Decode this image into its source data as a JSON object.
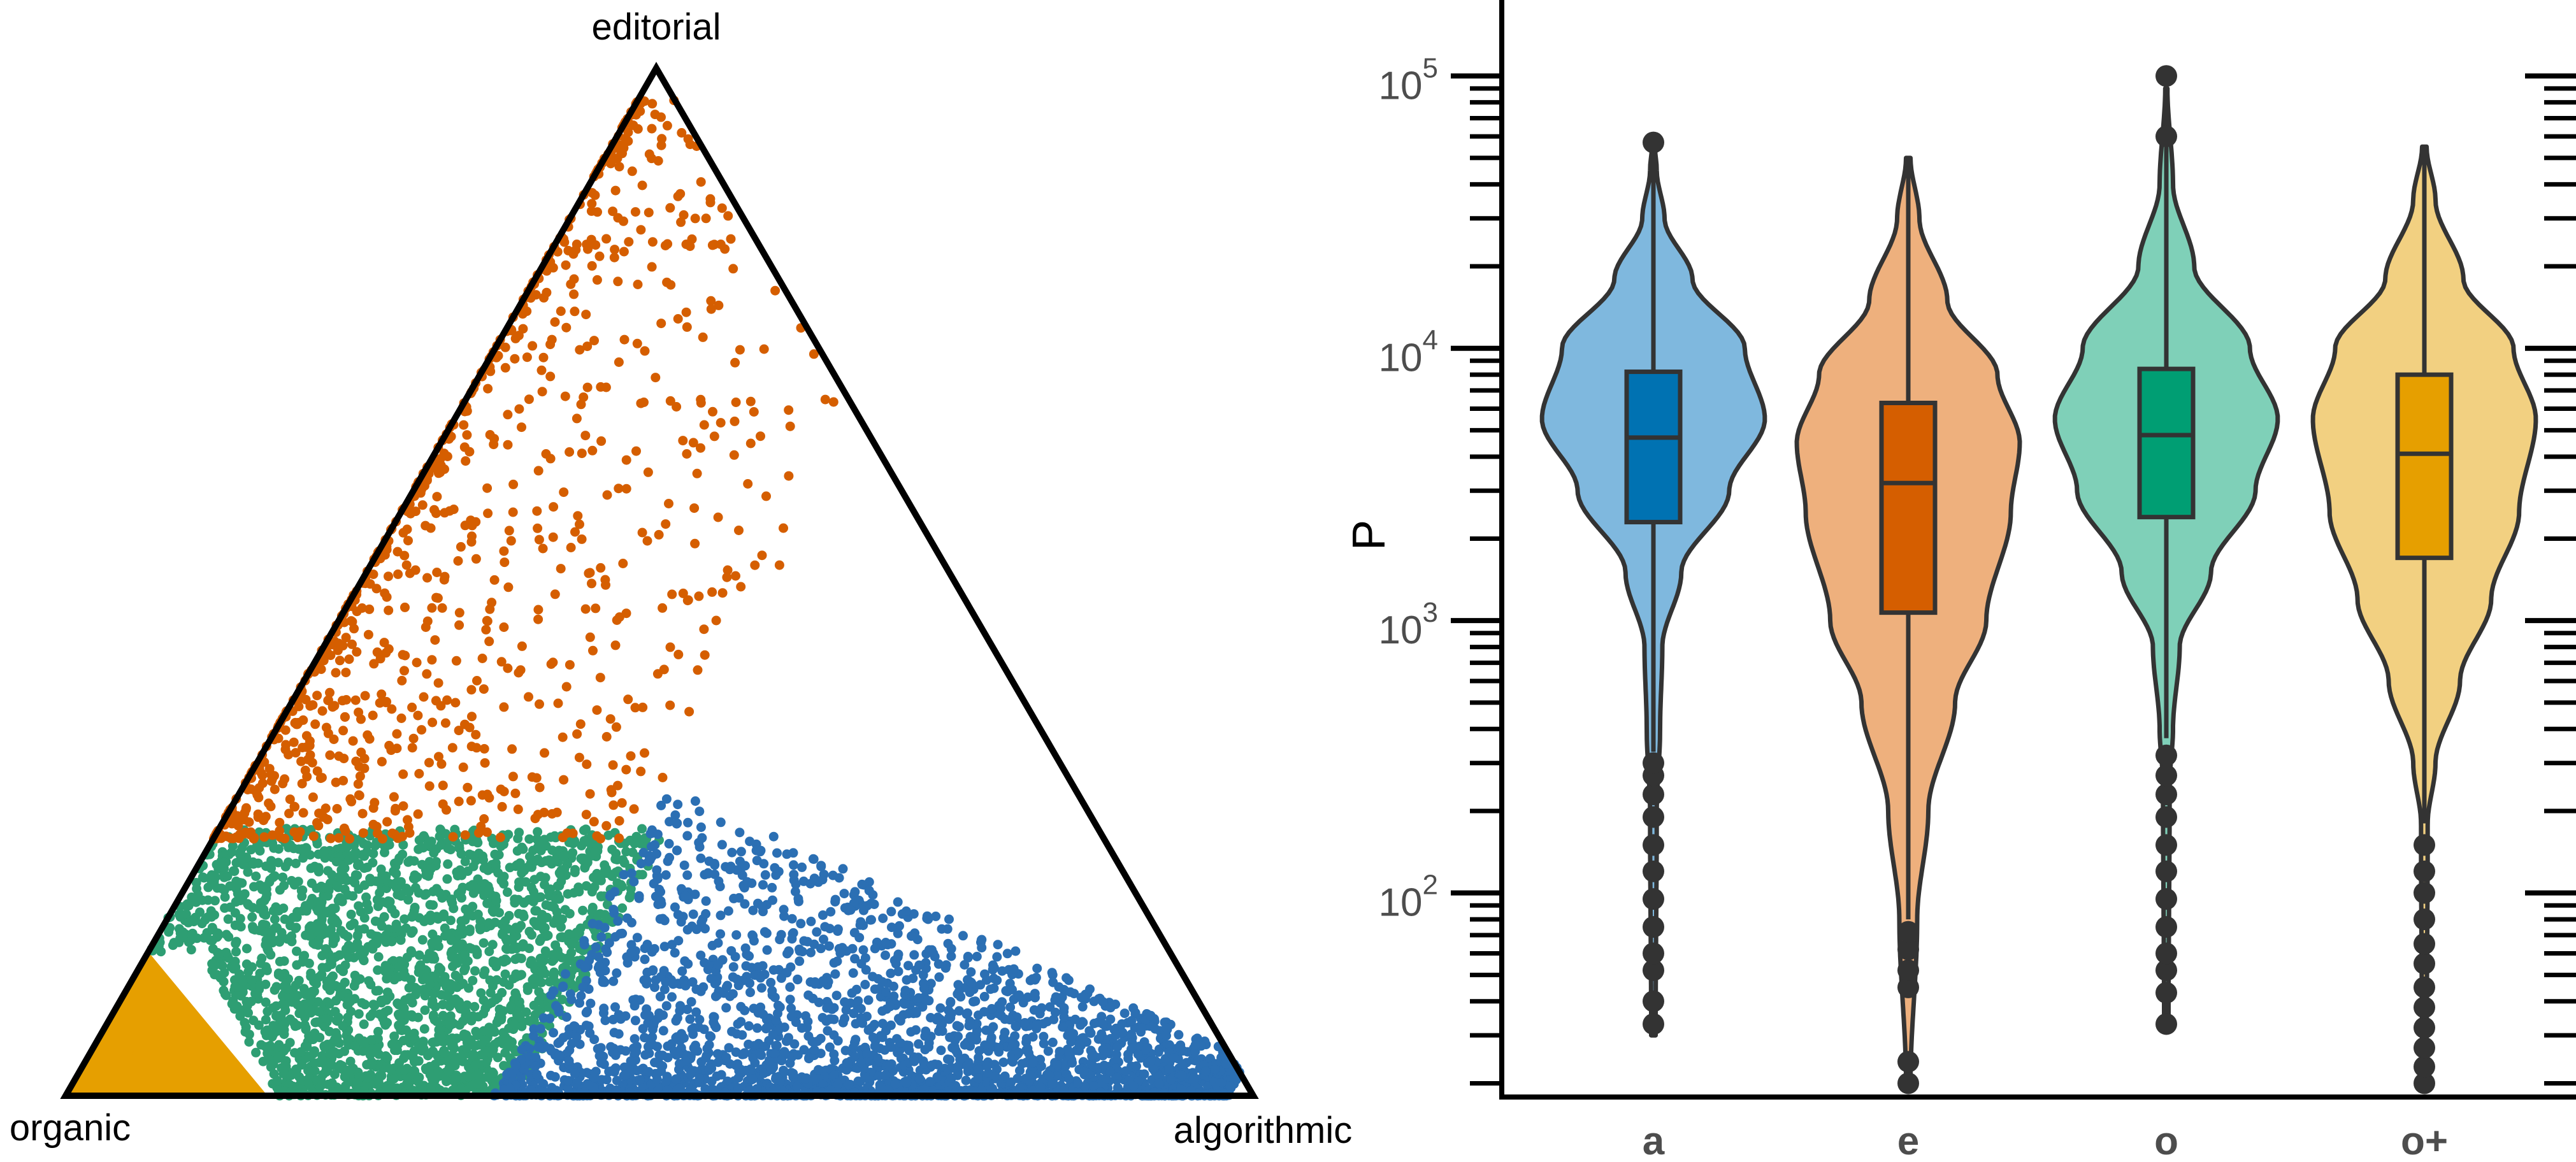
{
  "chart_data": [
    {
      "type": "scatter",
      "subtype": "ternary",
      "vertex_labels": {
        "top": "editorial",
        "bottom_left": "organic",
        "bottom_right": "algorithmic"
      },
      "components": [
        "editorial",
        "organic",
        "algorithmic"
      ],
      "groups": [
        {
          "key": "editorial",
          "color": "#D55E00",
          "region": "editorial share > 0.25, near organic–editorial edge"
        },
        {
          "key": "organic",
          "color": "#E69F00",
          "region": "organic share > 0.8"
        },
        {
          "key": "mixed",
          "color": "#2E9E73",
          "region": "organic dominant, editorial < 0.25"
        },
        {
          "key": "algorithmic",
          "color": "#2B6FB3",
          "region": "algorithmic share > 0.37"
        }
      ],
      "point_samples": [
        {
          "editorial": 0.86,
          "organic": 0.12,
          "algorithmic": 0.02,
          "group": "editorial"
        },
        {
          "editorial": 0.78,
          "organic": 0.18,
          "algorithmic": 0.04,
          "group": "editorial"
        },
        {
          "editorial": 0.7,
          "organic": 0.24,
          "algorithmic": 0.06,
          "group": "editorial"
        },
        {
          "editorial": 0.62,
          "organic": 0.28,
          "algorithmic": 0.1,
          "group": "editorial"
        },
        {
          "editorial": 0.55,
          "organic": 0.35,
          "algorithmic": 0.1,
          "group": "editorial"
        },
        {
          "editorial": 0.48,
          "organic": 0.4,
          "algorithmic": 0.12,
          "group": "editorial"
        },
        {
          "editorial": 0.42,
          "organic": 0.38,
          "algorithmic": 0.2,
          "group": "editorial"
        },
        {
          "editorial": 0.38,
          "organic": 0.3,
          "algorithmic": 0.32,
          "group": "editorial"
        },
        {
          "editorial": 0.33,
          "organic": 0.52,
          "algorithmic": 0.15,
          "group": "editorial"
        },
        {
          "editorial": 0.3,
          "organic": 0.45,
          "algorithmic": 0.25,
          "group": "editorial"
        },
        {
          "editorial": 0.28,
          "organic": 0.6,
          "algorithmic": 0.12,
          "group": "editorial"
        },
        {
          "editorial": 0.2,
          "organic": 0.7,
          "algorithmic": 0.1,
          "group": "mixed"
        },
        {
          "editorial": 0.15,
          "organic": 0.65,
          "algorithmic": 0.2,
          "group": "mixed"
        },
        {
          "editorial": 0.1,
          "organic": 0.6,
          "algorithmic": 0.3,
          "group": "mixed"
        },
        {
          "editorial": 0.05,
          "organic": 0.7,
          "algorithmic": 0.25,
          "group": "mixed"
        },
        {
          "editorial": 0.18,
          "organic": 0.55,
          "algorithmic": 0.27,
          "group": "mixed"
        },
        {
          "editorial": 0.02,
          "organic": 0.8,
          "algorithmic": 0.18,
          "group": "mixed"
        },
        {
          "editorial": 0.12,
          "organic": 0.45,
          "algorithmic": 0.43,
          "group": "algorithmic"
        },
        {
          "editorial": 0.05,
          "organic": 0.4,
          "algorithmic": 0.55,
          "group": "algorithmic"
        },
        {
          "editorial": 0.08,
          "organic": 0.25,
          "algorithmic": 0.67,
          "group": "algorithmic"
        },
        {
          "editorial": 0.03,
          "organic": 0.15,
          "algorithmic": 0.82,
          "group": "algorithmic"
        },
        {
          "editorial": 0.15,
          "organic": 0.3,
          "algorithmic": 0.55,
          "group": "algorithmic"
        },
        {
          "editorial": 0.02,
          "organic": 0.05,
          "algorithmic": 0.93,
          "group": "algorithmic"
        },
        {
          "editorial": 0.04,
          "organic": 0.92,
          "algorithmic": 0.04,
          "group": "organic"
        },
        {
          "editorial": 0.08,
          "organic": 0.86,
          "algorithmic": 0.06,
          "group": "organic"
        }
      ],
      "density_note": "thousands of points; solid fills near the organic corner"
    },
    {
      "type": "violin",
      "ylabel": "P",
      "yscale": "log10",
      "ylim": [
        18,
        160000
      ],
      "ytick_major": [
        100,
        1000,
        10000,
        100000
      ],
      "ytick_labels": [
        {
          "base": "10",
          "exp": "2"
        },
        {
          "base": "10",
          "exp": "3"
        },
        {
          "base": "10",
          "exp": "4"
        },
        {
          "base": "10",
          "exp": "5"
        }
      ],
      "ytick_minor": [
        20,
        30,
        40,
        50,
        60,
        70,
        80,
        90,
        200,
        300,
        400,
        500,
        600,
        700,
        800,
        900,
        2000,
        3000,
        4000,
        5000,
        6000,
        7000,
        8000,
        9000,
        20000,
        30000,
        40000,
        50000,
        60000,
        70000,
        80000,
        90000
      ],
      "categories": [
        "a",
        "e",
        "o",
        "o+"
      ],
      "series": [
        {
          "category": "a",
          "fill": "#7FB8DE",
          "box_color": "#0072B2",
          "q1": 2300,
          "median": 4700,
          "q3": 8200,
          "whisker_low": 330,
          "whisker_high": 55000,
          "outliers": [
            33,
            40,
            52,
            60,
            75,
            95,
            120,
            150,
            190,
            230,
            270,
            300,
            57000
          ],
          "density_profile": [
            [
              30,
              0.02
            ],
            [
              200,
              0.03
            ],
            [
              400,
              0.06
            ],
            [
              800,
              0.08
            ],
            [
              1500,
              0.25
            ],
            [
              3000,
              0.68
            ],
            [
              5500,
              1.0
            ],
            [
              10000,
              0.82
            ],
            [
              18000,
              0.35
            ],
            [
              30000,
              0.1
            ],
            [
              45000,
              0.03
            ],
            [
              57000,
              0.01
            ]
          ]
        },
        {
          "category": "e",
          "fill": "#EEB07D",
          "box_color": "#D55E00",
          "q1": 1070,
          "median": 3200,
          "q3": 6300,
          "whisker_low": 80,
          "whisker_high": 50000,
          "outliers": [
            20,
            24,
            45,
            52,
            62,
            72
          ],
          "density_profile": [
            [
              20,
              0.02
            ],
            [
              80,
              0.08
            ],
            [
              200,
              0.18
            ],
            [
              500,
              0.42
            ],
            [
              1000,
              0.7
            ],
            [
              2500,
              0.92
            ],
            [
              4500,
              1.0
            ],
            [
              8000,
              0.8
            ],
            [
              15000,
              0.35
            ],
            [
              30000,
              0.1
            ],
            [
              50000,
              0.02
            ]
          ]
        },
        {
          "category": "o",
          "fill": "#7FD0B8",
          "box_color": "#009E73",
          "q1": 2400,
          "median": 4800,
          "q3": 8400,
          "whisker_low": 370,
          "whisker_high": 100000,
          "outliers": [
            33,
            43,
            52,
            60,
            75,
            95,
            120,
            150,
            190,
            230,
            270,
            320,
            60000,
            100000
          ],
          "density_profile": [
            [
              33,
              0.02
            ],
            [
              250,
              0.03
            ],
            [
              400,
              0.06
            ],
            [
              800,
              0.12
            ],
            [
              1500,
              0.4
            ],
            [
              3000,
              0.8
            ],
            [
              5500,
              1.0
            ],
            [
              10000,
              0.75
            ],
            [
              20000,
              0.25
            ],
            [
              40000,
              0.06
            ],
            [
              90000,
              0.01
            ]
          ]
        },
        {
          "category": "o+",
          "fill": "#F2D081",
          "box_color": "#E69F00",
          "q1": 1700,
          "median": 4100,
          "q3": 8000,
          "whisker_low": 180,
          "whisker_high": 55000,
          "outliers": [
            20,
            23,
            27,
            32,
            38,
            45,
            55,
            65,
            80,
            100,
            120,
            150
          ],
          "density_profile": [
            [
              20,
              0.02
            ],
            [
              180,
              0.03
            ],
            [
              300,
              0.1
            ],
            [
              600,
              0.32
            ],
            [
              1200,
              0.6
            ],
            [
              2500,
              0.85
            ],
            [
              5500,
              1.0
            ],
            [
              10000,
              0.8
            ],
            [
              18000,
              0.35
            ],
            [
              35000,
              0.1
            ],
            [
              55000,
              0.02
            ]
          ]
        }
      ],
      "grid": false,
      "legend": "none"
    }
  ]
}
